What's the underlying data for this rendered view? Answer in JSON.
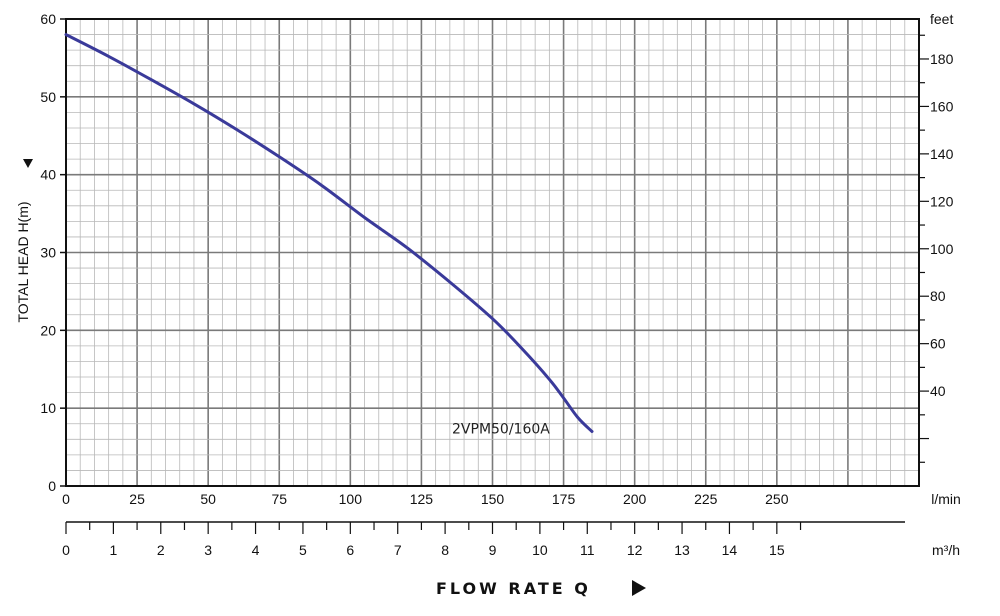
{
  "chart_data": {
    "type": "line",
    "ylabel": "TOTAL HEAD H(m)",
    "xlabel": "FLOW RATE Q",
    "y_left": {
      "range": [
        0,
        60
      ],
      "ticks": [
        "0",
        "10",
        "20",
        "30",
        "40",
        "50",
        "60"
      ]
    },
    "y_right": {
      "unit": "feet",
      "ticks": [
        "40",
        "60",
        "80",
        "100",
        "120",
        "140",
        "160",
        "180"
      ]
    },
    "x_top": {
      "unit": "l/min",
      "range": [
        0,
        300
      ],
      "ticks": [
        "0",
        "25",
        "50",
        "75",
        "100",
        "125",
        "150",
        "175",
        "200",
        "225",
        "250"
      ]
    },
    "x_bottom": {
      "unit": "m³/h",
      "ticks": [
        "0",
        "1",
        "2",
        "3",
        "4",
        "5",
        "6",
        "7",
        "8",
        "9",
        "10",
        "11",
        "12",
        "13",
        "14",
        "15"
      ]
    },
    "grid": true,
    "series": [
      {
        "name": "2VPM50/160A",
        "color": "#3a3a9a",
        "x": [
          0,
          15,
          30,
          45,
          60,
          75,
          90,
          105,
          120,
          135,
          150,
          160,
          170,
          175,
          180,
          185
        ],
        "y": [
          58,
          55.2,
          52.2,
          49.1,
          45.8,
          42.3,
          38.6,
          34.5,
          30.6,
          26.2,
          21.5,
          17.8,
          13.7,
          11.3,
          8.8,
          7
        ]
      }
    ]
  }
}
